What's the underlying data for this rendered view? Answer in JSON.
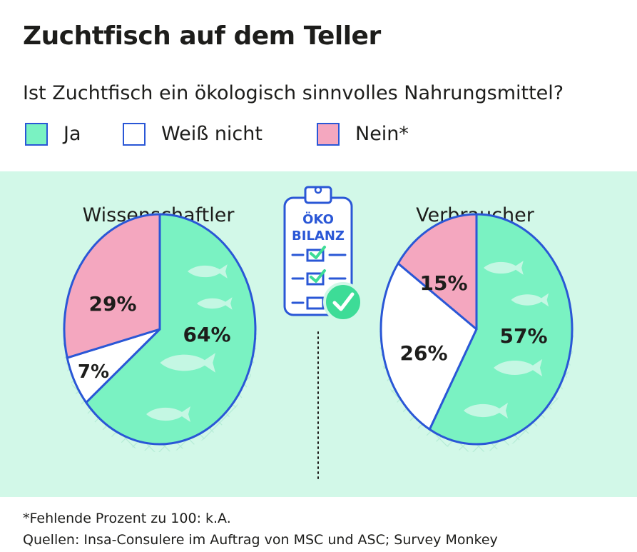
{
  "title": "Zuchtfisch auf dem Teller",
  "subtitle": "Ist Zuchtfisch ein ökologisch sinnvolles Nahrungsmittel?",
  "legend": [
    {
      "label": "Ja",
      "color": "#7af2c2"
    },
    {
      "label": "Weiß nicht",
      "color": "#ffffff"
    },
    {
      "label": "Nein*",
      "color": "#f4a7bf"
    }
  ],
  "icon": {
    "name": "clipboard-checklist-icon",
    "line1": "ÖKO",
    "line2": "BILANZ"
  },
  "colors": {
    "outline": "#2a57d6",
    "panel": "#d2f8e8",
    "text": "#1d1d1b",
    "check": "#3ddc97"
  },
  "chart_data": [
    {
      "type": "pie",
      "title": "Wissenschaftler",
      "slices": [
        {
          "category": "Ja",
          "value": 64,
          "label": "64%"
        },
        {
          "category": "Weiß nicht",
          "value": 7,
          "label": "7%"
        },
        {
          "category": "Nein*",
          "value": 29,
          "label": "29%"
        }
      ]
    },
    {
      "type": "pie",
      "title": "Verbraucher",
      "slices": [
        {
          "category": "Ja",
          "value": 57,
          "label": "57%"
        },
        {
          "category": "Weiß nicht",
          "value": 26,
          "label": "26%"
        },
        {
          "category": "Nein*",
          "value": 15,
          "label": "15%"
        }
      ]
    }
  ],
  "footnote": {
    "line1": "*Fehlende Prozent zu 100: k.A.",
    "line2": "Quellen: Insa-Consulere im Auftrag von MSC und ASC; Survey Monkey"
  }
}
